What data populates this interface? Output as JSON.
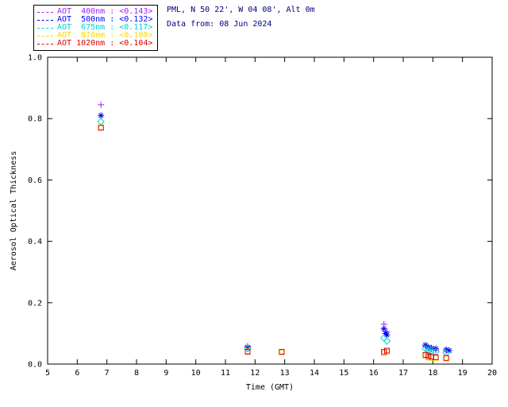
{
  "header": {
    "line1": "PML, N 50 22', W 04 08', Alt 0m",
    "line2": "Data from: 08 Jun 2024",
    "color": "#000080"
  },
  "chart_data": {
    "type": "scatter",
    "title": "",
    "xlabel": "Time (GMT)",
    "ylabel": "Aerosol Optical Thickness",
    "xlim": [
      5,
      20
    ],
    "ylim": [
      0.0,
      1.0
    ],
    "xticks": [
      5,
      6,
      7,
      8,
      9,
      10,
      11,
      12,
      13,
      14,
      15,
      16,
      17,
      18,
      19,
      20
    ],
    "yticks": [
      0.0,
      0.2,
      0.4,
      0.6,
      0.8,
      1.0
    ],
    "ytick_labels": [
      "0.0",
      "0.2",
      "0.4",
      "0.6",
      "0.8",
      "1.0"
    ],
    "grid": false,
    "legend_position": "top-left",
    "series": [
      {
        "name": "AOT 400nm",
        "legend_label": "AOT  400nm : <0.143>",
        "color": "#A020F0",
        "marker": "plus",
        "points": [
          [
            6.8,
            0.845
          ],
          [
            11.75,
            0.058
          ],
          [
            16.35,
            0.13
          ],
          [
            16.45,
            0.105
          ],
          [
            17.75,
            0.058
          ],
          [
            17.85,
            0.052
          ],
          [
            17.95,
            0.05
          ],
          [
            18.1,
            0.046
          ],
          [
            18.45,
            0.042
          ]
        ]
      },
      {
        "name": "AOT 500nm",
        "legend_label": "AOT  500nm : <0.132>",
        "color": "#0000FF",
        "marker": "asterisk",
        "points": [
          [
            6.8,
            0.81
          ],
          [
            11.75,
            0.055
          ],
          [
            16.35,
            0.115
          ],
          [
            16.4,
            0.1
          ],
          [
            16.45,
            0.095
          ],
          [
            17.75,
            0.062
          ],
          [
            17.85,
            0.055
          ],
          [
            17.95,
            0.052
          ],
          [
            18.1,
            0.05
          ],
          [
            18.45,
            0.047
          ],
          [
            18.55,
            0.044
          ]
        ]
      },
      {
        "name": "AOT 675nm",
        "legend_label": "AOT  675nm : <0.117>",
        "color": "#00CED1",
        "marker": "diamond",
        "points": [
          [
            6.8,
            0.79
          ],
          [
            11.75,
            0.05
          ],
          [
            16.35,
            0.085
          ],
          [
            16.45,
            0.075
          ],
          [
            17.75,
            0.05
          ],
          [
            17.85,
            0.046
          ],
          [
            17.95,
            0.044
          ],
          [
            18.1,
            0.04
          ],
          [
            18.45,
            0.036
          ]
        ]
      },
      {
        "name": "AOT 870nm",
        "legend_label": "AOT  870nm : <0.100>",
        "color": "#FFD700",
        "marker": "square",
        "points": [
          [
            6.8,
            0.772
          ],
          [
            11.75,
            0.042
          ],
          [
            12.9,
            0.038
          ],
          [
            16.35,
            0.035
          ],
          [
            16.45,
            0.04
          ],
          [
            17.75,
            0.026
          ],
          [
            17.85,
            0.022
          ],
          [
            17.95,
            0.02
          ],
          [
            18.1,
            0.02
          ],
          [
            18.45,
            0.018
          ]
        ]
      },
      {
        "name": "AOT 1020nm",
        "legend_label": "AOT 1020nm : <0.104>",
        "color": "#DC0000",
        "marker": "square",
        "points": [
          [
            6.8,
            0.77
          ],
          [
            11.75,
            0.04
          ],
          [
            12.9,
            0.04
          ],
          [
            16.35,
            0.04
          ],
          [
            16.45,
            0.044
          ],
          [
            17.75,
            0.03
          ],
          [
            17.85,
            0.026
          ],
          [
            17.95,
            0.024
          ],
          [
            18.1,
            0.022
          ],
          [
            18.45,
            0.02
          ]
        ]
      }
    ]
  }
}
